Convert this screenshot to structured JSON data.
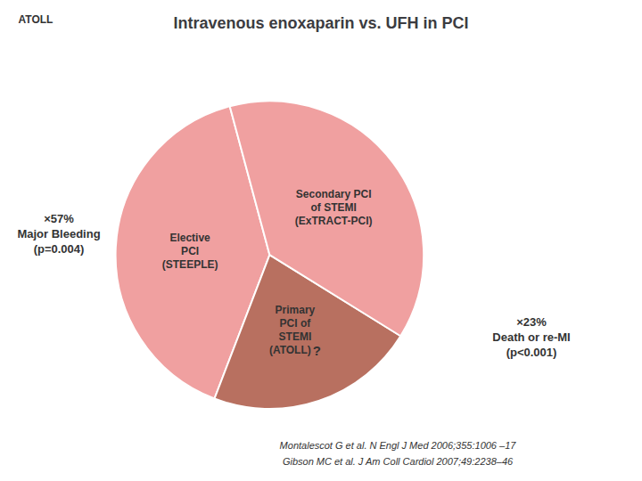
{
  "chart_data": {
    "type": "pie",
    "title": "Intravenous enoxaparin vs. UFH in PCI",
    "categories": [
      "Elective\nPCI\n(STEEPLE)",
      "Primary\nPCI of\nSTEMI\n(ATOLL)",
      "Secondary PCI\nof STEMI\n(ExTRACT-PCI)"
    ],
    "values": [
      40,
      22,
      38
    ],
    "colors": [
      "#f0a0a0",
      "#b87060",
      "#f0a0a0"
    ],
    "annotations": [
      "ATOLL",
      "?",
      "×57%\nMajor Bleeding\n(p=0.004)",
      "×23%\nDeath or re-MI\n(p<0.001)",
      "Montalescot G et al. N Engl J Med 2006;355:1006 –17",
      "Gibson MC et al. J Am Coll Cardiol 2007;49:2238–46"
    ]
  }
}
